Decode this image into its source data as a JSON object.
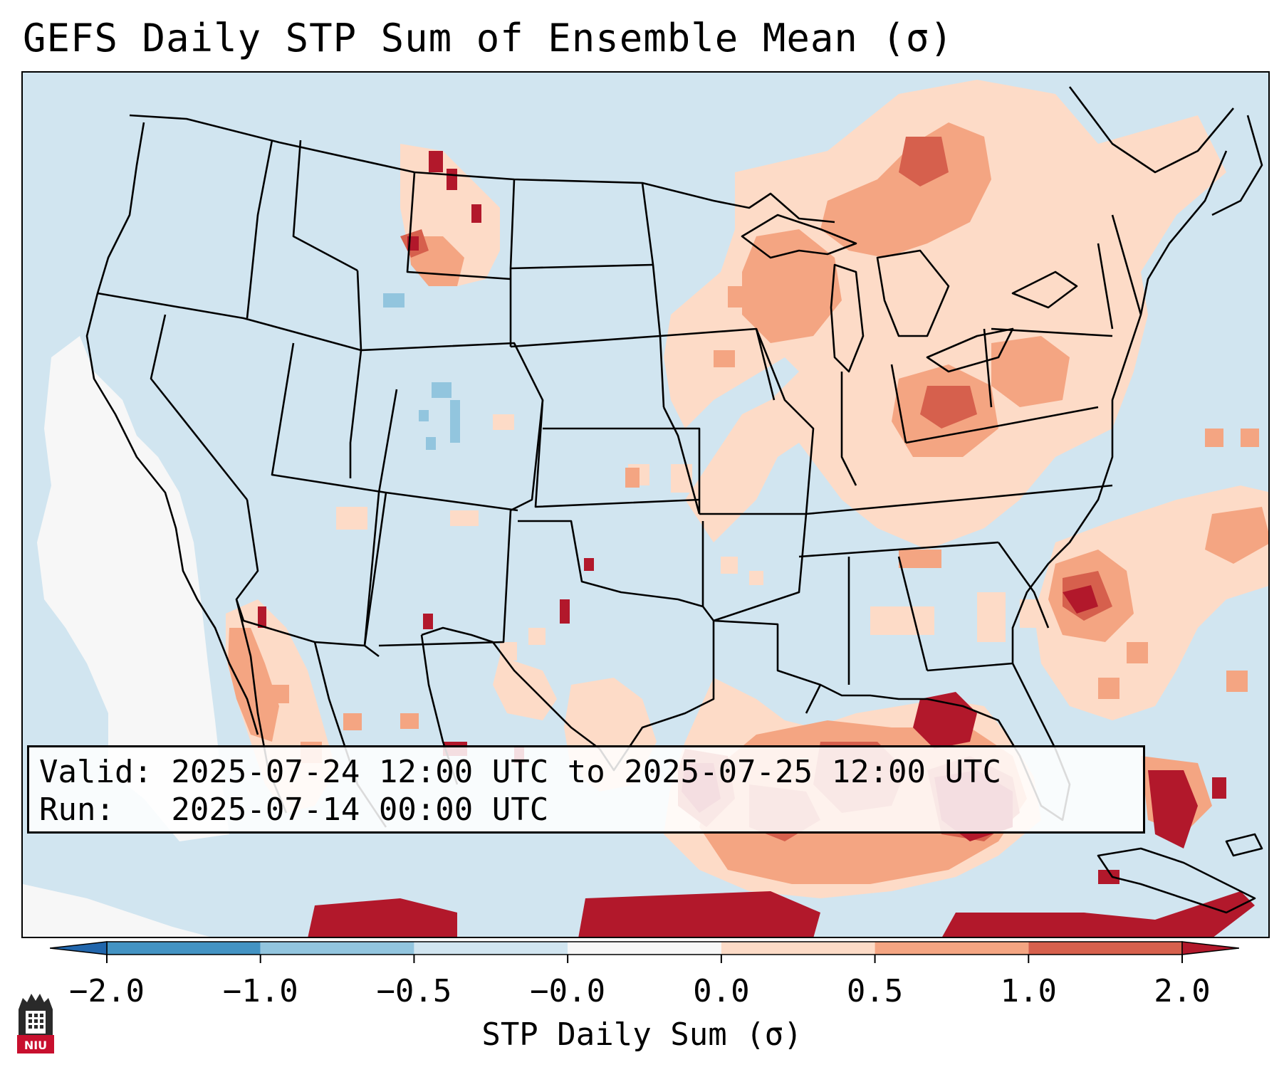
{
  "title": "GEFS Daily STP Sum of Ensemble Mean (σ)",
  "info": {
    "valid_line": "Valid: 2025-07-24 12:00 UTC to 2025-07-25 12:00 UTC",
    "run_line": "Run:   2025-07-14 00:00 UTC"
  },
  "colorbar": {
    "label": "STP Daily Sum (σ)",
    "ticks": [
      "−2.0",
      "−1.0",
      "−0.5",
      "−0.0",
      "0.0",
      "0.5",
      "1.0",
      "2.0"
    ],
    "colors": [
      "#4393c3",
      "#92c5de",
      "#d1e5f0",
      "#f7f7f7",
      "#fddbc7",
      "#f4a582",
      "#d6604d"
    ],
    "extend_low_color": "#2166ac",
    "extend_high_color": "#b2182b"
  },
  "logo": {
    "text": "NIU",
    "color": "#c8102e"
  },
  "map": {
    "background_color": "#d1e5f0",
    "region": "Contiguous United States, southern Canada, northern Mexico, Gulf of Mexico",
    "anomaly_regions": [
      {
        "name": "Great Lakes and Ontario",
        "level": "0.5 to 1.0"
      },
      {
        "name": "Upper Midwest",
        "level": "0.0 to 1.0"
      },
      {
        "name": "Ohio Valley",
        "level": "0.5 to 1.0"
      },
      {
        "name": "Pennsylvania and New York",
        "level": "0.0 to 1.0"
      },
      {
        "name": "Carolina coast and western Atlantic",
        "level": "0.5 to 2.0"
      },
      {
        "name": "Florida and eastern Gulf",
        "level": "1.0 to >2.0"
      },
      {
        "name": "Western Gulf off Texas",
        "level": "1.0 to >2.0"
      },
      {
        "name": "Bahamas",
        "level": "1.0 to >2.0"
      },
      {
        "name": "Cuba and Caribbean",
        "level": ">2.0"
      },
      {
        "name": "Gulf of California and northwest Mexico",
        "level": "0.5 to >2.0"
      },
      {
        "name": "Montana and northern Plains",
        "level": "0.0 to >2.0"
      },
      {
        "name": "Colorado Rockies",
        "level": "-1.0 to -0.5"
      },
      {
        "name": "Pacific off California",
        "level": "-0.5 to 0.0"
      }
    ]
  }
}
